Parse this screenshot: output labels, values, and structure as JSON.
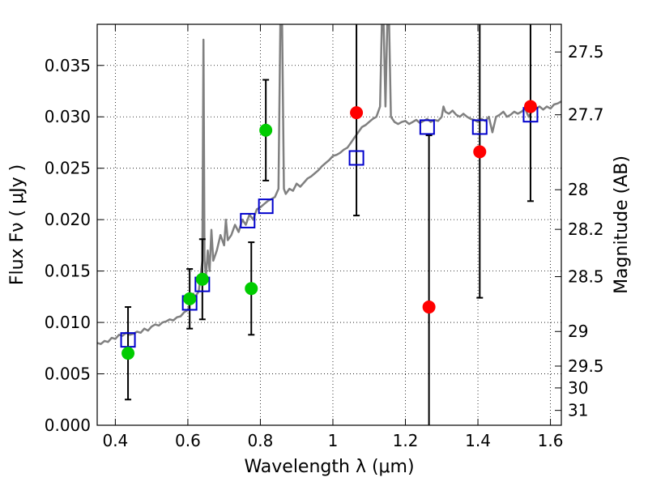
{
  "chart_data": {
    "type": "scatter",
    "xlabel": "Wavelength  λ (μm)",
    "ylabel_left": "Flux  Fν  ( μJy )",
    "ylabel_right": "Magnitude (AB)",
    "xlim": [
      0.35,
      1.63
    ],
    "ylim": [
      0.0,
      0.039
    ],
    "grid": true,
    "x_ticks": [
      {
        "value": 0.4,
        "label": "0.4"
      },
      {
        "value": 0.6,
        "label": "0.6"
      },
      {
        "value": 0.8,
        "label": "0.8"
      },
      {
        "value": 1.0,
        "label": "1"
      },
      {
        "value": 1.2,
        "label": "1.2"
      },
      {
        "value": 1.4,
        "label": "1.4"
      },
      {
        "value": 1.6,
        "label": "1.6"
      }
    ],
    "y_ticks": [
      {
        "value": 0.0,
        "label": "0.000"
      },
      {
        "value": 0.005,
        "label": "0.005"
      },
      {
        "value": 0.01,
        "label": "0.010"
      },
      {
        "value": 0.015,
        "label": "0.015"
      },
      {
        "value": 0.02,
        "label": "0.020"
      },
      {
        "value": 0.025,
        "label": "0.025"
      },
      {
        "value": 0.03,
        "label": "0.030"
      },
      {
        "value": 0.035,
        "label": "0.035"
      }
    ],
    "magnitude_ticks": [
      {
        "value": 27.5,
        "label": "27.5"
      },
      {
        "value": 27.7,
        "label": "27.7"
      },
      {
        "value": 28.0,
        "label": "28"
      },
      {
        "value": 28.2,
        "label": "28.2"
      },
      {
        "value": 28.5,
        "label": "28.5"
      },
      {
        "value": 29.0,
        "label": "29"
      },
      {
        "value": 29.5,
        "label": "29.5"
      },
      {
        "value": 30.0,
        "label": "30"
      },
      {
        "value": 31.0,
        "label": "31"
      }
    ],
    "model_spectrum": {
      "color": "#808080",
      "points": [
        [
          0.35,
          0.008
        ],
        [
          0.36,
          0.0079
        ],
        [
          0.37,
          0.0082
        ],
        [
          0.38,
          0.0081
        ],
        [
          0.39,
          0.0085
        ],
        [
          0.4,
          0.0084
        ],
        [
          0.41,
          0.0088
        ],
        [
          0.42,
          0.0087
        ],
        [
          0.43,
          0.009
        ],
        [
          0.44,
          0.0088
        ],
        [
          0.45,
          0.0089
        ],
        [
          0.46,
          0.0091
        ],
        [
          0.47,
          0.009
        ],
        [
          0.48,
          0.0094
        ],
        [
          0.49,
          0.0092
        ],
        [
          0.5,
          0.0096
        ],
        [
          0.51,
          0.0098
        ],
        [
          0.52,
          0.0097
        ],
        [
          0.53,
          0.01
        ],
        [
          0.54,
          0.0101
        ],
        [
          0.55,
          0.0103
        ],
        [
          0.56,
          0.0102
        ],
        [
          0.57,
          0.0105
        ],
        [
          0.58,
          0.0106
        ],
        [
          0.59,
          0.011
        ],
        [
          0.6,
          0.0112
        ],
        [
          0.605,
          0.0118
        ],
        [
          0.61,
          0.012
        ],
        [
          0.615,
          0.0128
        ],
        [
          0.62,
          0.0125
        ],
        [
          0.63,
          0.013
        ],
        [
          0.635,
          0.0145
        ],
        [
          0.64,
          0.016
        ],
        [
          0.643,
          0.0375
        ],
        [
          0.646,
          0.016
        ],
        [
          0.65,
          0.0145
        ],
        [
          0.655,
          0.017
        ],
        [
          0.66,
          0.015
        ],
        [
          0.665,
          0.019
        ],
        [
          0.67,
          0.016
        ],
        [
          0.68,
          0.017
        ],
        [
          0.69,
          0.0185
        ],
        [
          0.7,
          0.0175
        ],
        [
          0.705,
          0.02
        ],
        [
          0.71,
          0.018
        ],
        [
          0.72,
          0.0185
        ],
        [
          0.73,
          0.0195
        ],
        [
          0.74,
          0.0188
        ],
        [
          0.75,
          0.02
        ],
        [
          0.76,
          0.0195
        ],
        [
          0.77,
          0.0205
        ],
        [
          0.78,
          0.02
        ],
        [
          0.79,
          0.021
        ],
        [
          0.8,
          0.0212
        ],
        [
          0.81,
          0.0215
        ],
        [
          0.82,
          0.0218
        ],
        [
          0.83,
          0.022
        ],
        [
          0.84,
          0.0222
        ],
        [
          0.85,
          0.023
        ],
        [
          0.855,
          0.039
        ],
        [
          0.86,
          0.039
        ],
        [
          0.865,
          0.023
        ],
        [
          0.87,
          0.0225
        ],
        [
          0.88,
          0.023
        ],
        [
          0.89,
          0.0228
        ],
        [
          0.9,
          0.0235
        ],
        [
          0.91,
          0.0232
        ],
        [
          0.92,
          0.0236
        ],
        [
          0.93,
          0.024
        ],
        [
          0.94,
          0.0242
        ],
        [
          0.95,
          0.0245
        ],
        [
          0.96,
          0.0248
        ],
        [
          0.97,
          0.0252
        ],
        [
          0.98,
          0.0255
        ],
        [
          0.99,
          0.0258
        ],
        [
          1.0,
          0.0262
        ],
        [
          1.01,
          0.0263
        ],
        [
          1.02,
          0.0265
        ],
        [
          1.03,
          0.0268
        ],
        [
          1.04,
          0.027
        ],
        [
          1.05,
          0.0275
        ],
        [
          1.06,
          0.028
        ],
        [
          1.07,
          0.0285
        ],
        [
          1.08,
          0.029
        ],
        [
          1.09,
          0.0292
        ],
        [
          1.1,
          0.0295
        ],
        [
          1.11,
          0.0298
        ],
        [
          1.12,
          0.03
        ],
        [
          1.13,
          0.031
        ],
        [
          1.135,
          0.039
        ],
        [
          1.14,
          0.039
        ],
        [
          1.145,
          0.031
        ],
        [
          1.15,
          0.039
        ],
        [
          1.155,
          0.039
        ],
        [
          1.16,
          0.03
        ],
        [
          1.17,
          0.0295
        ],
        [
          1.18,
          0.0293
        ],
        [
          1.19,
          0.0295
        ],
        [
          1.2,
          0.0296
        ],
        [
          1.21,
          0.0293
        ],
        [
          1.22,
          0.0295
        ],
        [
          1.23,
          0.0297
        ],
        [
          1.24,
          0.0294
        ],
        [
          1.25,
          0.0296
        ],
        [
          1.26,
          0.0298
        ],
        [
          1.27,
          0.0295
        ],
        [
          1.28,
          0.0297
        ],
        [
          1.29,
          0.0296
        ],
        [
          1.3,
          0.03
        ],
        [
          1.305,
          0.031
        ],
        [
          1.31,
          0.0305
        ],
        [
          1.32,
          0.0303
        ],
        [
          1.33,
          0.0306
        ],
        [
          1.34,
          0.0302
        ],
        [
          1.35,
          0.03
        ],
        [
          1.36,
          0.0303
        ],
        [
          1.37,
          0.03
        ],
        [
          1.38,
          0.0298
        ],
        [
          1.39,
          0.0297
        ],
        [
          1.4,
          0.0295
        ],
        [
          1.41,
          0.0298
        ],
        [
          1.42,
          0.0296
        ],
        [
          1.43,
          0.03
        ],
        [
          1.44,
          0.0285
        ],
        [
          1.45,
          0.03
        ],
        [
          1.46,
          0.0302
        ],
        [
          1.47,
          0.0305
        ],
        [
          1.48,
          0.03
        ],
        [
          1.49,
          0.0302
        ],
        [
          1.5,
          0.0305
        ],
        [
          1.51,
          0.0303
        ],
        [
          1.52,
          0.0305
        ],
        [
          1.53,
          0.0308
        ],
        [
          1.54,
          0.03
        ],
        [
          1.55,
          0.0306
        ],
        [
          1.56,
          0.0308
        ],
        [
          1.57,
          0.031
        ],
        [
          1.58,
          0.0307
        ],
        [
          1.59,
          0.031
        ],
        [
          1.6,
          0.0308
        ],
        [
          1.61,
          0.0312
        ],
        [
          1.62,
          0.0313
        ],
        [
          1.63,
          0.0315
        ]
      ]
    },
    "model_bandpass": {
      "color": "#0000cc",
      "points": [
        [
          0.435,
          0.0083
        ],
        [
          0.605,
          0.0119
        ],
        [
          0.64,
          0.0137
        ],
        [
          0.765,
          0.0199
        ],
        [
          0.815,
          0.0213
        ],
        [
          1.065,
          0.026
        ],
        [
          1.26,
          0.029
        ],
        [
          1.405,
          0.029
        ],
        [
          1.545,
          0.0302
        ]
      ]
    },
    "detections": {
      "color": "#00cc00",
      "points": [
        {
          "x": 0.435,
          "y": 0.007,
          "err": 0.0045
        },
        {
          "x": 0.605,
          "y": 0.0123,
          "err": 0.0029
        },
        {
          "x": 0.64,
          "y": 0.0142,
          "err": 0.0039
        },
        {
          "x": 0.775,
          "y": 0.0133,
          "err": 0.0045
        },
        {
          "x": 0.815,
          "y": 0.0287,
          "err": 0.0049
        }
      ]
    },
    "low_significance": {
      "color": "#ff0000",
      "points": [
        {
          "x": 1.065,
          "y": 0.0304,
          "err": 0.01
        },
        {
          "x": 1.265,
          "y": 0.0115,
          "err": 0.0167
        },
        {
          "x": 1.405,
          "y": 0.0266,
          "err": 0.0142
        },
        {
          "x": 1.545,
          "y": 0.031,
          "err": 0.0092
        }
      ]
    }
  }
}
